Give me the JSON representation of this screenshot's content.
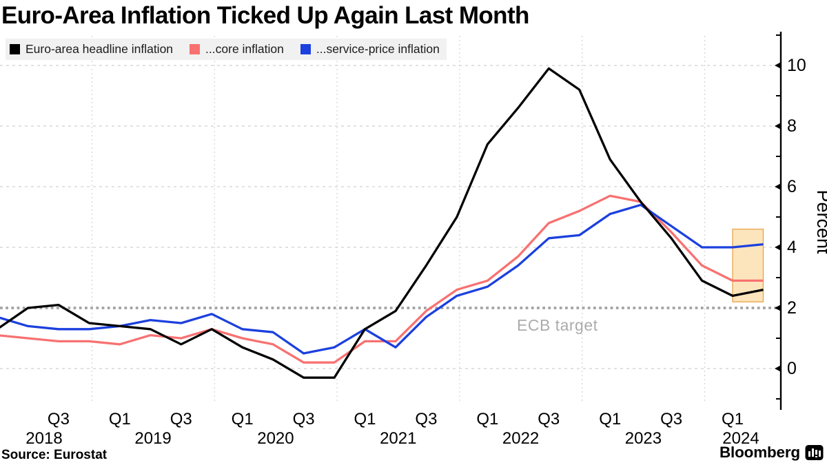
{
  "page": {
    "title": "Euro-Area Inflation Ticked Up Again Last Month"
  },
  "legend": {
    "items": [
      {
        "label": "Euro-area headline inflation",
        "color": "#000000"
      },
      {
        "label": "...core inflation",
        "color": "#f87171"
      },
      {
        "label": "...service-price inflation",
        "color": "#1b40de"
      }
    ]
  },
  "annotation": {
    "ecb_target_label": "ECB target"
  },
  "footer": {
    "source": "Source: Eurostat",
    "brand": "Bloomberg"
  },
  "colors": {
    "headline": "#000000",
    "core": "#f87171",
    "services": "#1b40de",
    "grid": "#cfcfcf",
    "axis": "#000000",
    "target_line": "#a3a3a3",
    "target_text": "#ababab",
    "legend_bg": "#f1f1f1",
    "highlight_fill": "#fce5bd",
    "highlight_border": "#e9a954"
  },
  "y_axis": {
    "title": "Percent",
    "major_ticks": [
      0,
      2,
      4,
      6,
      8,
      10
    ],
    "minor_ticks": [
      -1,
      1,
      3,
      5,
      7,
      9,
      11
    ]
  },
  "x_axis": {
    "quarter_ticks": [
      {
        "label": "Q3",
        "i": 2
      },
      {
        "label": "Q1",
        "i": 4
      },
      {
        "label": "Q3",
        "i": 6
      },
      {
        "label": "Q1",
        "i": 8
      },
      {
        "label": "Q3",
        "i": 10
      },
      {
        "label": "Q1",
        "i": 12
      },
      {
        "label": "Q3",
        "i": 14
      },
      {
        "label": "Q1",
        "i": 16
      },
      {
        "label": "Q3",
        "i": 18
      },
      {
        "label": "Q1",
        "i": 20
      },
      {
        "label": "Q3",
        "i": 22
      },
      {
        "label": "Q1",
        "i": 24
      }
    ],
    "year_labels": [
      "2018",
      "2019",
      "2020",
      "2021",
      "2022",
      "2023",
      "2024"
    ]
  },
  "chart_data": {
    "type": "line",
    "x": [
      "Mar 2018",
      "Jun 2018",
      "Sep 2018",
      "Dec 2018",
      "Mar 2019",
      "Jun 2019",
      "Sep 2019",
      "Dec 2019",
      "Mar 2020",
      "Jun 2020",
      "Sep 2020",
      "Dec 2020",
      "Mar 2021",
      "Jun 2021",
      "Sep 2021",
      "Dec 2021",
      "Mar 2022",
      "Jun 2022",
      "Sep 2022",
      "Dec 2022",
      "Mar 2023",
      "Jun 2023",
      "Sep 2023",
      "Dec 2023",
      "Mar 2024",
      "May 2024"
    ],
    "series": [
      {
        "name": "Euro-area headline inflation",
        "color": "#000000",
        "values": [
          1.3,
          2.0,
          2.1,
          1.5,
          1.4,
          1.3,
          0.8,
          1.3,
          0.7,
          0.3,
          -0.3,
          -0.3,
          1.3,
          1.9,
          3.4,
          5.0,
          7.4,
          8.6,
          9.9,
          9.2,
          6.9,
          5.5,
          4.3,
          2.9,
          2.4,
          2.6
        ]
      },
      {
        "name": "...core inflation",
        "color": "#f87171",
        "values": [
          1.1,
          1.0,
          0.9,
          0.9,
          0.8,
          1.1,
          1.0,
          1.3,
          1.0,
          0.8,
          0.2,
          0.2,
          0.9,
          0.9,
          1.9,
          2.6,
          2.9,
          3.7,
          4.8,
          5.2,
          5.7,
          5.5,
          4.5,
          3.4,
          2.9,
          2.9
        ]
      },
      {
        "name": "...service-price inflation",
        "color": "#1b40de",
        "values": [
          1.7,
          1.4,
          1.3,
          1.3,
          1.4,
          1.6,
          1.5,
          1.8,
          1.3,
          1.2,
          0.5,
          0.7,
          1.3,
          0.7,
          1.7,
          2.4,
          2.7,
          3.4,
          4.3,
          4.4,
          5.1,
          5.4,
          4.7,
          4.0,
          4.0,
          4.1
        ]
      }
    ],
    "title": "Euro-Area Inflation Ticked Up Again Last Month",
    "ylabel": "Percent",
    "ylim": [
      -1.3,
      11.2
    ],
    "grid": "dashed",
    "legend_position": "top-left",
    "ecb_target_value": 2,
    "highlight_region": {
      "from_index": 24,
      "to_index": 25,
      "value_min": 2.2,
      "value_max": 4.6
    }
  }
}
